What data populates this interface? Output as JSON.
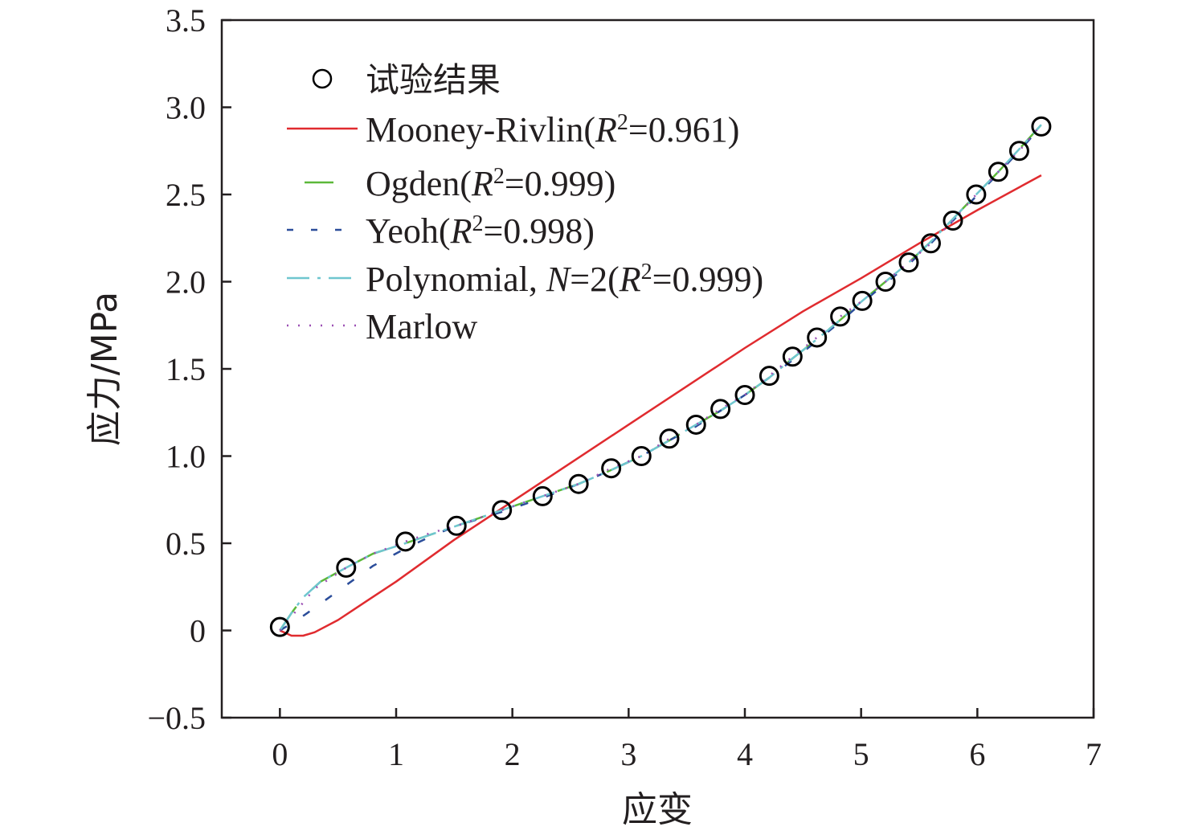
{
  "chart_data": {
    "type": "line",
    "title": "",
    "xlabel": "应变",
    "ylabel": "应力/MPa",
    "xlim": [
      -0.5,
      7
    ],
    "ylim": [
      -0.5,
      3.5
    ],
    "x_ticks": [
      0,
      1,
      2,
      3,
      4,
      5,
      6,
      7
    ],
    "y_ticks": [
      -0.5,
      0,
      0.5,
      1.0,
      1.5,
      2.0,
      2.5,
      3.0,
      3.5
    ],
    "x_tick_labels": [
      "0",
      "1",
      "2",
      "3",
      "4",
      "5",
      "6",
      "7"
    ],
    "y_tick_labels": [
      "−0.5",
      "0",
      "0.5",
      "1.0",
      "1.5",
      "2.0",
      "2.5",
      "3.0",
      "3.5"
    ],
    "grid": false,
    "legend_position": "top-left",
    "series": [
      {
        "name": "试验结果",
        "label": "试验结果",
        "style": "markers",
        "color": "#000000",
        "x": [
          0.0,
          0.57,
          1.08,
          1.52,
          1.91,
          2.26,
          2.57,
          2.85,
          3.11,
          3.35,
          3.58,
          3.79,
          4.0,
          4.21,
          4.41,
          4.62,
          4.82,
          5.01,
          5.21,
          5.41,
          5.6,
          5.79,
          5.99,
          6.18,
          6.36,
          6.55
        ],
        "y": [
          0.02,
          0.36,
          0.51,
          0.6,
          0.69,
          0.77,
          0.84,
          0.93,
          1.0,
          1.1,
          1.18,
          1.27,
          1.35,
          1.46,
          1.57,
          1.68,
          1.8,
          1.89,
          2.0,
          2.11,
          2.22,
          2.35,
          2.5,
          2.63,
          2.75,
          2.89
        ]
      },
      {
        "name": "Mooney-Rivlin",
        "label_main": "Mooney-Rivlin(",
        "label_r": "R",
        "label_sup": "2",
        "label_tail": "=0.961)",
        "style": "solid",
        "color": "#e02b2f",
        "x": [
          0.0,
          0.1,
          0.2,
          0.3,
          0.5,
          0.75,
          1.0,
          1.25,
          1.5,
          1.75,
          2.0,
          2.5,
          3.0,
          3.5,
          4.0,
          4.5,
          5.0,
          5.5,
          6.0,
          6.55
        ],
        "y": [
          0.0,
          -0.03,
          -0.03,
          -0.01,
          0.06,
          0.17,
          0.28,
          0.4,
          0.52,
          0.63,
          0.74,
          0.96,
          1.18,
          1.4,
          1.62,
          1.83,
          2.02,
          2.22,
          2.41,
          2.61
        ]
      },
      {
        "name": "Ogden",
        "label_main": "Ogden(",
        "label_r": "R",
        "label_sup": "2",
        "label_tail": "=0.999)",
        "style": "dashed",
        "color": "#5cb83a",
        "x": [
          0.0,
          0.1,
          0.2,
          0.35,
          0.57,
          0.8,
          1.08,
          1.3,
          1.52,
          1.91,
          2.26,
          2.57,
          2.85,
          3.11,
          3.35,
          3.58,
          3.79,
          4.0,
          4.21,
          4.41,
          4.62,
          4.82,
          5.01,
          5.21,
          5.41,
          5.6,
          5.79,
          5.99,
          6.18,
          6.36,
          6.55
        ],
        "y": [
          0.0,
          0.1,
          0.19,
          0.28,
          0.36,
          0.44,
          0.5,
          0.55,
          0.6,
          0.69,
          0.77,
          0.84,
          0.92,
          1.0,
          1.09,
          1.18,
          1.26,
          1.35,
          1.45,
          1.56,
          1.67,
          1.78,
          1.89,
          2.0,
          2.11,
          2.23,
          2.36,
          2.5,
          2.63,
          2.76,
          2.9
        ]
      },
      {
        "name": "Yeoh",
        "label_main": "Yeoh(",
        "label_r": "R",
        "label_sup": "2",
        "label_tail": "=0.998)",
        "style": "dashed",
        "color": "#2b4d9a",
        "x": [
          0.0,
          0.15,
          0.3,
          0.57,
          0.8,
          1.08,
          1.3,
          1.52,
          1.91,
          2.26,
          2.57,
          2.85,
          3.11,
          3.35,
          3.58,
          3.79,
          4.0,
          4.21,
          4.41,
          4.62,
          4.82,
          5.01,
          5.21,
          5.41,
          5.6,
          5.79,
          5.99,
          6.18,
          6.36,
          6.55
        ],
        "y": [
          0.0,
          0.06,
          0.13,
          0.26,
          0.37,
          0.47,
          0.54,
          0.6,
          0.68,
          0.76,
          0.84,
          0.92,
          1.0,
          1.09,
          1.17,
          1.26,
          1.35,
          1.45,
          1.55,
          1.66,
          1.77,
          1.88,
          1.99,
          2.1,
          2.22,
          2.35,
          2.49,
          2.62,
          2.75,
          2.89
        ]
      },
      {
        "name": "Polynomial, N=2",
        "label_main": "Polynomial, ",
        "label_n": "N",
        "label_mid": "=2(",
        "label_r": "R",
        "label_sup": "2",
        "label_tail": "=0.999)",
        "style": "dashdot",
        "color": "#6fc6cf",
        "x": [
          0.0,
          0.1,
          0.2,
          0.35,
          0.57,
          0.8,
          1.08,
          1.3,
          1.52,
          1.91,
          2.26,
          2.57,
          2.85,
          3.11,
          3.35,
          3.58,
          3.79,
          4.0,
          4.21,
          4.41,
          4.62,
          4.82,
          5.01,
          5.21,
          5.41,
          5.6,
          5.79,
          5.99,
          6.18,
          6.36,
          6.55
        ],
        "y": [
          0.0,
          0.1,
          0.19,
          0.28,
          0.36,
          0.44,
          0.5,
          0.55,
          0.6,
          0.69,
          0.77,
          0.84,
          0.92,
          1.0,
          1.09,
          1.18,
          1.26,
          1.35,
          1.45,
          1.56,
          1.67,
          1.78,
          1.89,
          2.0,
          2.11,
          2.23,
          2.36,
          2.5,
          2.63,
          2.76,
          2.9
        ]
      },
      {
        "name": "Marlow",
        "label_main": "Marlow",
        "style": "dotted",
        "color": "#9b4fb4",
        "x": [
          0.0,
          0.1,
          0.2,
          0.3,
          0.57,
          0.8,
          1.08,
          1.3,
          1.52,
          1.91,
          2.26,
          2.57,
          2.85,
          3.11,
          3.35,
          3.58,
          3.79,
          4.0,
          4.21,
          4.41,
          4.62,
          4.82,
          5.01,
          5.21,
          5.41,
          5.6,
          5.79,
          5.99,
          6.18,
          6.36,
          6.55
        ],
        "y": [
          0.0,
          0.08,
          0.16,
          0.24,
          0.36,
          0.44,
          0.51,
          0.56,
          0.6,
          0.69,
          0.77,
          0.84,
          0.93,
          1.0,
          1.1,
          1.18,
          1.27,
          1.35,
          1.46,
          1.57,
          1.68,
          1.8,
          1.89,
          2.0,
          2.11,
          2.22,
          2.35,
          2.5,
          2.63,
          2.75,
          2.9
        ]
      }
    ]
  }
}
